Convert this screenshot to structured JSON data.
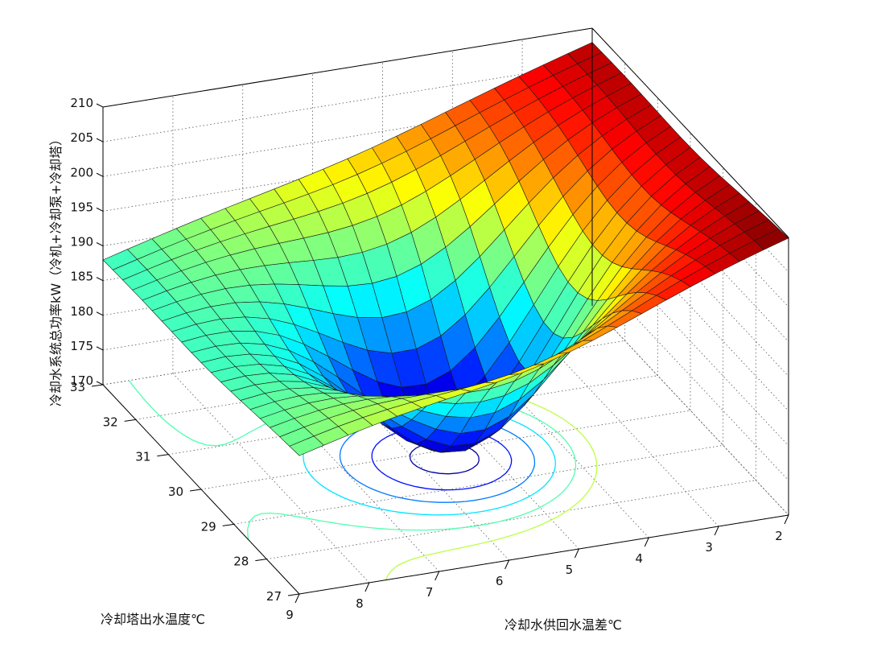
{
  "chart_data": {
    "type": "surface3d",
    "title": "",
    "xlabel": "冷却水供回水温差℃",
    "ylabel": "冷却塔出水温度℃",
    "zlabel": "冷却水系统总功率kW（冷机+冷却泵+冷却塔）",
    "x_ticks": [
      "2",
      "3",
      "4",
      "5",
      "6",
      "7",
      "8",
      "9"
    ],
    "y_ticks": [
      "27",
      "28",
      "29",
      "30",
      "31",
      "32",
      "33"
    ],
    "z_ticks": [
      "170",
      "175",
      "180",
      "185",
      "190",
      "195",
      "200",
      "205",
      "210"
    ],
    "xlim": [
      2,
      9
    ],
    "ylim": [
      27,
      33
    ],
    "zlim": [
      170,
      210
    ],
    "surface": {
      "x_range": [
        2,
        9
      ],
      "y_range": [
        27,
        33
      ],
      "grid": [
        20,
        20
      ],
      "corner_values": {
        "x9_y27": 190,
        "x2_y27": 210,
        "x9_y33": 188,
        "x2_y33": 208
      },
      "minimum": {
        "x": 5.6,
        "y": 29.8,
        "z": 171.5
      }
    },
    "contour_levels": [
      173,
      177,
      181,
      185,
      189,
      193
    ],
    "colormap": "jet",
    "grid": true
  }
}
